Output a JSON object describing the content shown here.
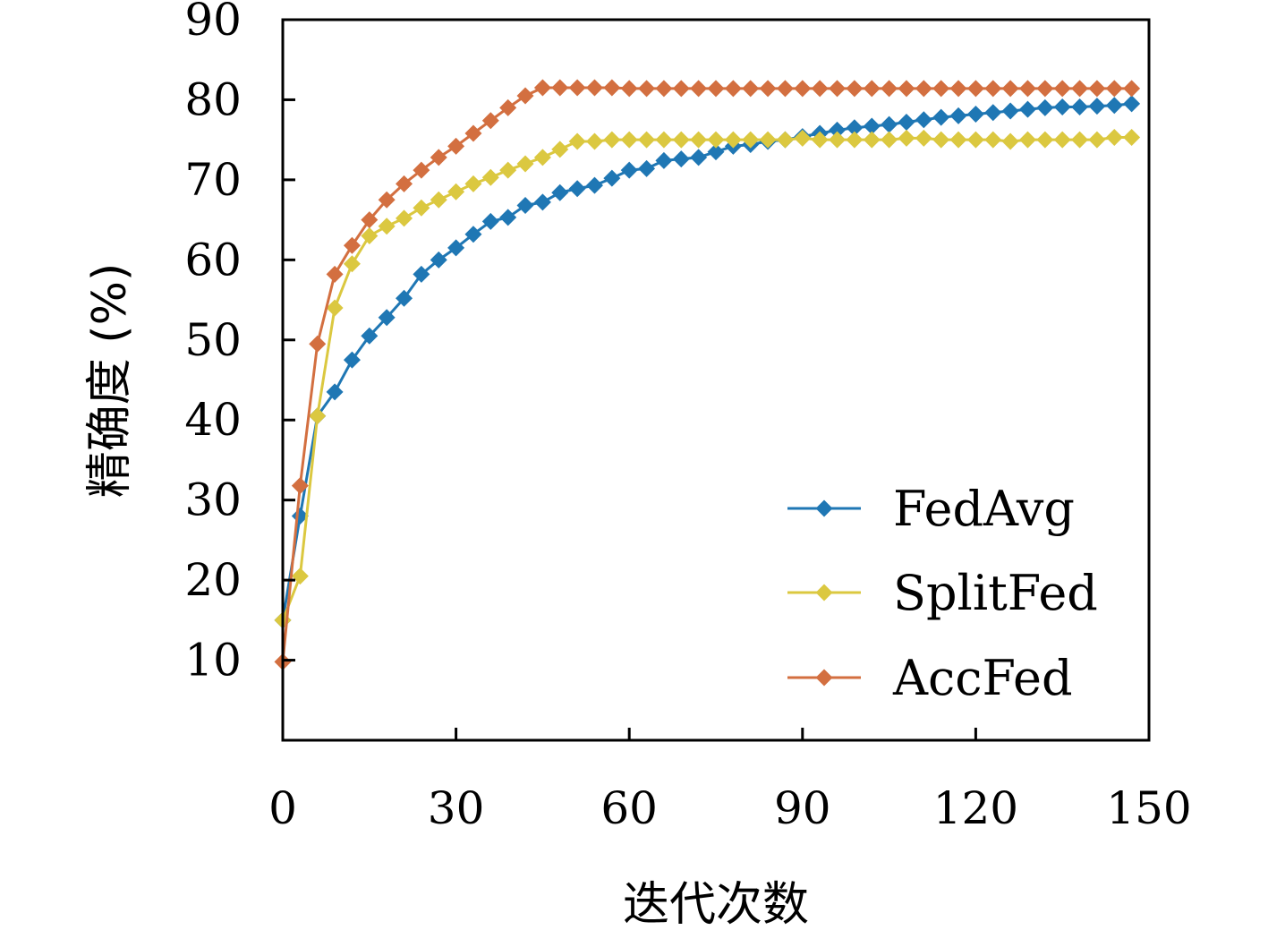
{
  "chart_data": {
    "type": "line",
    "title": "",
    "xlabel": "迭代次数",
    "ylabel": "精确度 (%)",
    "xlim": [
      0,
      150
    ],
    "ylim": [
      0,
      90
    ],
    "xticks": [
      0,
      30,
      60,
      90,
      120,
      150
    ],
    "yticks": [
      10,
      20,
      30,
      40,
      50,
      60,
      70,
      80,
      90
    ],
    "grid": false,
    "legend_position": "bottom-right",
    "series": [
      {
        "name": "FedAvg",
        "color": "#1f77b4",
        "marker": "diamond",
        "x": [
          0,
          3,
          6,
          9,
          12,
          15,
          18,
          21,
          24,
          27,
          30,
          33,
          36,
          39,
          42,
          45,
          48,
          51,
          54,
          57,
          60,
          63,
          66,
          69,
          72,
          75,
          78,
          81,
          84,
          87,
          90,
          93,
          96,
          99,
          102,
          105,
          108,
          111,
          114,
          117,
          120,
          123,
          126,
          129,
          132,
          135,
          138,
          141,
          144,
          147
        ],
        "y": [
          15,
          28,
          40.5,
          43.5,
          47.5,
          50.5,
          52.8,
          55.2,
          58.2,
          60,
          61.5,
          63.2,
          64.8,
          65.3,
          66.8,
          67.2,
          68.4,
          68.9,
          69.3,
          70.2,
          71.2,
          71.4,
          72.4,
          72.6,
          72.8,
          73.5,
          74.2,
          74.4,
          74.8,
          75,
          75.4,
          75.8,
          76.2,
          76.5,
          76.7,
          76.9,
          77.2,
          77.5,
          77.8,
          78,
          78.2,
          78.4,
          78.6,
          78.8,
          79,
          79.1,
          79.1,
          79.2,
          79.3,
          79.5
        ]
      },
      {
        "name": "SplitFed",
        "color": "#dbc840",
        "marker": "diamond",
        "x": [
          0,
          3,
          6,
          9,
          12,
          15,
          18,
          21,
          24,
          27,
          30,
          33,
          36,
          39,
          42,
          45,
          48,
          51,
          54,
          57,
          60,
          63,
          66,
          69,
          72,
          75,
          78,
          81,
          84,
          87,
          90,
          93,
          96,
          99,
          102,
          105,
          108,
          111,
          114,
          117,
          120,
          123,
          126,
          129,
          132,
          135,
          138,
          141,
          144,
          147
        ],
        "y": [
          15,
          20.5,
          40.5,
          54,
          59.5,
          63,
          64.2,
          65.2,
          66.5,
          67.5,
          68.5,
          69.5,
          70.3,
          71.2,
          72,
          72.8,
          73.8,
          74.8,
          74.8,
          75,
          75,
          75,
          75,
          75,
          75,
          75,
          75,
          75,
          75,
          75,
          75.2,
          75,
          75,
          75,
          75,
          75,
          75.2,
          75.2,
          75,
          75,
          75,
          75,
          74.8,
          75,
          75,
          75,
          75,
          75,
          75.3,
          75.3
        ]
      },
      {
        "name": "AccFed",
        "color": "#d36f40",
        "marker": "diamond",
        "x": [
          0,
          3,
          6,
          9,
          12,
          15,
          18,
          21,
          24,
          27,
          30,
          33,
          36,
          39,
          42,
          45,
          48,
          51,
          54,
          57,
          60,
          63,
          66,
          69,
          72,
          75,
          78,
          81,
          84,
          87,
          90,
          93,
          96,
          99,
          102,
          105,
          108,
          111,
          114,
          117,
          120,
          123,
          126,
          129,
          132,
          135,
          138,
          141,
          144,
          147
        ],
        "y": [
          9.8,
          31.8,
          49.5,
          58.2,
          61.8,
          65,
          67.5,
          69.5,
          71.2,
          72.8,
          74.2,
          75.8,
          77.4,
          79,
          80.5,
          81.5,
          81.5,
          81.5,
          81.5,
          81.5,
          81.4,
          81.4,
          81.4,
          81.4,
          81.4,
          81.4,
          81.4,
          81.4,
          81.4,
          81.4,
          81.4,
          81.4,
          81.4,
          81.4,
          81.4,
          81.4,
          81.4,
          81.4,
          81.4,
          81.4,
          81.4,
          81.4,
          81.4,
          81.4,
          81.4,
          81.4,
          81.4,
          81.4,
          81.4,
          81.4
        ]
      }
    ]
  }
}
